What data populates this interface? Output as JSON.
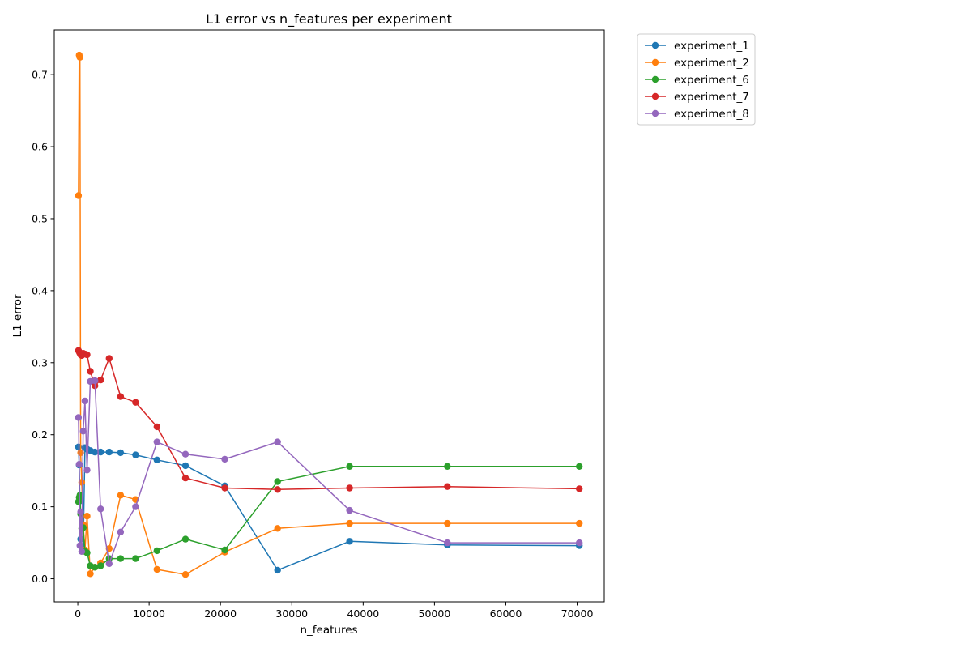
{
  "chart_data": {
    "type": "line",
    "title": "L1 error vs n_features per experiment",
    "xlabel": "n_features",
    "ylabel": "L1 error",
    "xlim": [
      -3300,
      73800
    ],
    "ylim": [
      -0.032,
      0.762
    ],
    "xticks": [
      0,
      10000,
      20000,
      30000,
      40000,
      50000,
      60000,
      70000
    ],
    "yticks": [
      0.0,
      0.1,
      0.2,
      0.3,
      0.4,
      0.5,
      0.6,
      0.7
    ],
    "xtick_labels": [
      "0",
      "10000",
      "20000",
      "30000",
      "40000",
      "50000",
      "60000",
      "70000"
    ],
    "ytick_labels": [
      "0.0",
      "0.1",
      "0.2",
      "0.3",
      "0.4",
      "0.5",
      "0.6",
      "0.7"
    ],
    "grid": false,
    "legend_position": "outside-top-right",
    "series": [
      {
        "name": "experiment_1",
        "color": "#1f77b4",
        "x": [
          100,
          200,
          300,
          400,
          550,
          750,
          1000,
          1300,
          1750,
          2400,
          3200,
          4400,
          6000,
          8100,
          11100,
          15100,
          20600,
          28000,
          38100,
          51800,
          70300
        ],
        "y": [
          0.183,
          0.158,
          0.108,
          0.055,
          0.045,
          0.039,
          0.182,
          0.18,
          0.178,
          0.176,
          0.176,
          0.176,
          0.175,
          0.172,
          0.165,
          0.157,
          0.129,
          0.012,
          0.052,
          0.047,
          0.046
        ]
      },
      {
        "name": "experiment_2",
        "color": "#ff7f0e",
        "x": [
          100,
          200,
          300,
          400,
          550,
          750,
          1000,
          1300,
          1750,
          2400,
          3200,
          4400,
          6000,
          8100,
          11100,
          15100,
          20600,
          28000,
          38100,
          51800,
          70300
        ],
        "y": [
          0.532,
          0.727,
          0.724,
          0.175,
          0.134,
          0.075,
          0.04,
          0.087,
          0.007,
          0.016,
          0.022,
          0.042,
          0.116,
          0.11,
          0.013,
          0.006,
          0.037,
          0.07,
          0.077,
          0.077,
          0.077
        ]
      },
      {
        "name": "experiment_6",
        "color": "#2ca02c",
        "x": [
          100,
          200,
          300,
          400,
          550,
          750,
          1000,
          1300,
          1750,
          2400,
          3200,
          4400,
          6000,
          8100,
          11100,
          15100,
          20600,
          28000,
          38100,
          51800,
          70300
        ],
        "y": [
          0.107,
          0.113,
          0.116,
          0.09,
          0.07,
          0.071,
          0.038,
          0.036,
          0.018,
          0.016,
          0.018,
          0.028,
          0.028,
          0.028,
          0.039,
          0.055,
          0.04,
          0.135,
          0.156,
          0.156,
          0.156
        ]
      },
      {
        "name": "experiment_7",
        "color": "#d62728",
        "x": [
          100,
          200,
          300,
          400,
          550,
          750,
          1000,
          1300,
          1750,
          2400,
          3200,
          4400,
          6000,
          8100,
          11100,
          15100,
          20600,
          28000,
          38100,
          51800,
          70300
        ],
        "y": [
          0.317,
          0.315,
          0.313,
          0.311,
          0.31,
          0.313,
          0.312,
          0.311,
          0.288,
          0.268,
          0.276,
          0.306,
          0.253,
          0.245,
          0.211,
          0.14,
          0.126,
          0.124,
          0.126,
          0.128,
          0.125
        ]
      },
      {
        "name": "experiment_8",
        "color": "#9467bd",
        "x": [
          100,
          200,
          300,
          400,
          550,
          750,
          1000,
          1300,
          1750,
          2400,
          3200,
          4400,
          6000,
          8100,
          11100,
          15100,
          20600,
          28000,
          38100,
          51800,
          70300
        ],
        "y": [
          0.224,
          0.159,
          0.046,
          0.093,
          0.038,
          0.205,
          0.247,
          0.151,
          0.274,
          0.275,
          0.097,
          0.021,
          0.065,
          0.1,
          0.19,
          0.173,
          0.166,
          0.19,
          0.095,
          0.05,
          0.05
        ]
      }
    ]
  }
}
